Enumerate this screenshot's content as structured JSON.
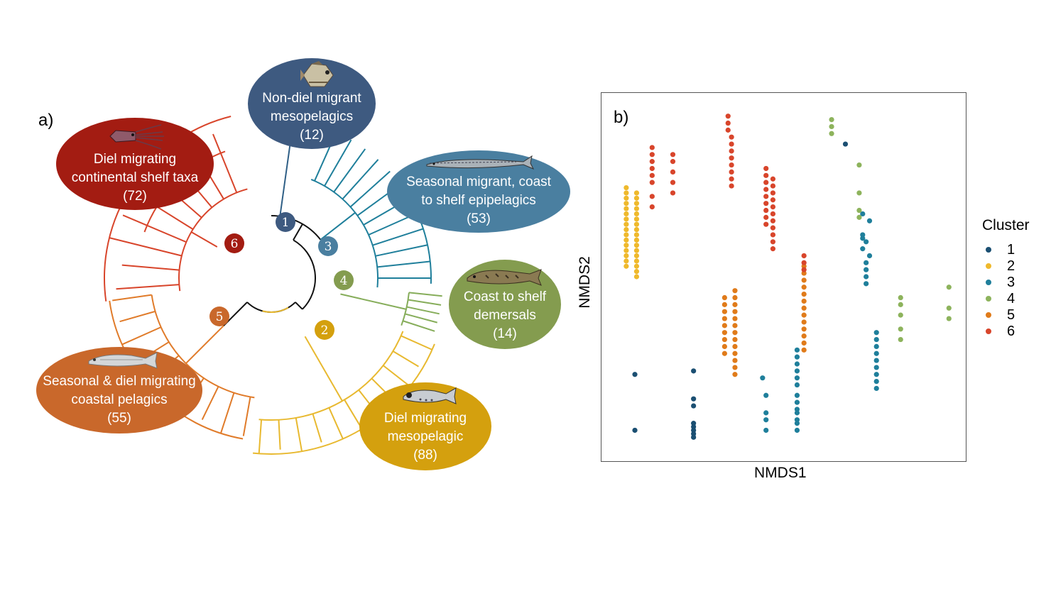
{
  "panel_a": {
    "label": "a)",
    "groups": [
      {
        "id": 1,
        "line1": "Non-diel migrant",
        "line2": "mesopelagics",
        "count": "(12)",
        "color": "#3e5a80",
        "icon": "hatchetfish-icon"
      },
      {
        "id": 3,
        "line1": "Seasonal migrant, coast",
        "line2": "to shelf epipelagics",
        "count": "(53)",
        "color": "#4a7fa0",
        "icon": "saury-icon"
      },
      {
        "id": 4,
        "line1": "Coast to shelf",
        "line2": "demersals",
        "count": "(14)",
        "color": "#849c4f",
        "icon": "cod-icon"
      },
      {
        "id": 2,
        "line1": "Diel migrating",
        "line2": "mesopelagic",
        "count": "(88)",
        "color": "#d4a00e",
        "icon": "lanternfish-icon"
      },
      {
        "id": 5,
        "line1": "Seasonal & diel migrating",
        "line2": "coastal pelagics",
        "count": "(55)",
        "color": "#c9682b",
        "icon": "anchovy-icon"
      },
      {
        "id": 6,
        "line1": "Diel migrating",
        "line2": "continental shelf taxa",
        "count": "(72)",
        "color": "#a31c12",
        "icon": "squid-icon"
      }
    ],
    "nodes": [
      {
        "num": "1",
        "color": "#3e5a80"
      },
      {
        "num": "2",
        "color": "#d4a00e"
      },
      {
        "num": "3",
        "color": "#4a7fa0"
      },
      {
        "num": "4",
        "color": "#849c4f"
      },
      {
        "num": "5",
        "color": "#c9682b"
      },
      {
        "num": "6",
        "color": "#a31c12"
      }
    ]
  },
  "panel_b": {
    "label": "b)",
    "xlabel": "NMDS1",
    "ylabel": "NMDS2",
    "legend_title": "Cluster",
    "legend": [
      {
        "label": "1",
        "color": "#1b4f72"
      },
      {
        "label": "2",
        "color": "#efb92c"
      },
      {
        "label": "3",
        "color": "#1f7f9b"
      },
      {
        "label": "4",
        "color": "#8db35c"
      },
      {
        "label": "5",
        "color": "#e07b1a"
      },
      {
        "label": "6",
        "color": "#d8452b"
      }
    ]
  },
  "chart_data": {
    "type": "scatter",
    "xlabel": "NMDS1",
    "ylabel": "NMDS2",
    "xlim": [
      0,
      1
    ],
    "ylim": [
      0,
      1
    ],
    "grid": false,
    "legend_title": "Cluster",
    "legend_position": "right",
    "series": [
      {
        "name": "1",
        "color": "#1b4f72",
        "points": [
          [
            0.68,
            0.88
          ],
          [
            0.07,
            0.22
          ],
          [
            0.07,
            0.06
          ],
          [
            0.24,
            0.23
          ],
          [
            0.24,
            0.15
          ],
          [
            0.24,
            0.13
          ],
          [
            0.24,
            0.08
          ],
          [
            0.24,
            0.07
          ],
          [
            0.24,
            0.06
          ],
          [
            0.24,
            0.05
          ],
          [
            0.24,
            0.04
          ]
        ]
      },
      {
        "name": "2",
        "color": "#efb92c",
        "series_note": "",
        "points": [
          [
            0.045,
            0.53
          ],
          [
            0.045,
            0.545
          ],
          [
            0.045,
            0.56
          ],
          [
            0.045,
            0.575
          ],
          [
            0.045,
            0.59
          ],
          [
            0.045,
            0.605
          ],
          [
            0.045,
            0.62
          ],
          [
            0.045,
            0.635
          ],
          [
            0.045,
            0.65
          ],
          [
            0.045,
            0.665
          ],
          [
            0.045,
            0.68
          ],
          [
            0.045,
            0.695
          ],
          [
            0.045,
            0.71
          ],
          [
            0.045,
            0.725
          ],
          [
            0.045,
            0.74
          ],
          [
            0.045,
            0.755
          ],
          [
            0.075,
            0.5
          ],
          [
            0.075,
            0.515
          ],
          [
            0.075,
            0.53
          ],
          [
            0.075,
            0.545
          ],
          [
            0.075,
            0.56
          ],
          [
            0.075,
            0.575
          ],
          [
            0.075,
            0.59
          ],
          [
            0.075,
            0.605
          ],
          [
            0.075,
            0.62
          ],
          [
            0.075,
            0.635
          ],
          [
            0.075,
            0.65
          ],
          [
            0.075,
            0.665
          ],
          [
            0.075,
            0.68
          ],
          [
            0.075,
            0.695
          ],
          [
            0.075,
            0.71
          ],
          [
            0.075,
            0.725
          ],
          [
            0.075,
            0.74
          ]
        ]
      },
      {
        "name": "3",
        "color": "#1f7f9b",
        "points": [
          [
            0.44,
            0.21
          ],
          [
            0.45,
            0.16
          ],
          [
            0.45,
            0.11
          ],
          [
            0.45,
            0.09
          ],
          [
            0.45,
            0.06
          ],
          [
            0.54,
            0.29
          ],
          [
            0.54,
            0.27
          ],
          [
            0.54,
            0.25
          ],
          [
            0.54,
            0.23
          ],
          [
            0.54,
            0.21
          ],
          [
            0.54,
            0.19
          ],
          [
            0.54,
            0.16
          ],
          [
            0.54,
            0.14
          ],
          [
            0.54,
            0.12
          ],
          [
            0.54,
            0.11
          ],
          [
            0.54,
            0.09
          ],
          [
            0.54,
            0.08
          ],
          [
            0.54,
            0.06
          ],
          [
            0.73,
            0.68
          ],
          [
            0.75,
            0.66
          ],
          [
            0.73,
            0.62
          ],
          [
            0.73,
            0.61
          ],
          [
            0.74,
            0.6
          ],
          [
            0.73,
            0.58
          ],
          [
            0.75,
            0.56
          ],
          [
            0.74,
            0.54
          ],
          [
            0.74,
            0.52
          ],
          [
            0.74,
            0.5
          ],
          [
            0.74,
            0.48
          ],
          [
            0.77,
            0.34
          ],
          [
            0.77,
            0.32
          ],
          [
            0.77,
            0.3
          ],
          [
            0.77,
            0.28
          ],
          [
            0.77,
            0.26
          ],
          [
            0.77,
            0.24
          ],
          [
            0.77,
            0.22
          ],
          [
            0.77,
            0.2
          ],
          [
            0.77,
            0.18
          ]
        ]
      },
      {
        "name": "4",
        "color": "#8db35c",
        "points": [
          [
            0.64,
            0.95
          ],
          [
            0.64,
            0.93
          ],
          [
            0.64,
            0.91
          ],
          [
            0.72,
            0.82
          ],
          [
            0.72,
            0.74
          ],
          [
            0.72,
            0.67
          ],
          [
            0.72,
            0.69
          ],
          [
            0.84,
            0.44
          ],
          [
            0.84,
            0.42
          ],
          [
            0.84,
            0.39
          ],
          [
            0.84,
            0.35
          ],
          [
            0.84,
            0.32
          ],
          [
            0.98,
            0.47
          ],
          [
            0.98,
            0.41
          ],
          [
            0.98,
            0.38
          ]
        ]
      },
      {
        "name": "5",
        "color": "#e07b1a",
        "points": [
          [
            0.33,
            0.44
          ],
          [
            0.33,
            0.42
          ],
          [
            0.33,
            0.4
          ],
          [
            0.33,
            0.38
          ],
          [
            0.33,
            0.36
          ],
          [
            0.33,
            0.34
          ],
          [
            0.33,
            0.32
          ],
          [
            0.33,
            0.3
          ],
          [
            0.33,
            0.28
          ],
          [
            0.36,
            0.46
          ],
          [
            0.36,
            0.44
          ],
          [
            0.36,
            0.42
          ],
          [
            0.36,
            0.4
          ],
          [
            0.36,
            0.38
          ],
          [
            0.36,
            0.36
          ],
          [
            0.36,
            0.34
          ],
          [
            0.36,
            0.32
          ],
          [
            0.36,
            0.3
          ],
          [
            0.36,
            0.28
          ],
          [
            0.36,
            0.26
          ],
          [
            0.36,
            0.24
          ],
          [
            0.36,
            0.22
          ],
          [
            0.56,
            0.53
          ],
          [
            0.56,
            0.51
          ],
          [
            0.56,
            0.49
          ],
          [
            0.56,
            0.47
          ],
          [
            0.56,
            0.45
          ],
          [
            0.56,
            0.43
          ],
          [
            0.56,
            0.41
          ],
          [
            0.56,
            0.39
          ],
          [
            0.56,
            0.37
          ],
          [
            0.56,
            0.35
          ],
          [
            0.56,
            0.33
          ],
          [
            0.56,
            0.31
          ],
          [
            0.56,
            0.29
          ]
        ]
      },
      {
        "name": "6",
        "color": "#d8452b",
        "points": [
          [
            0.12,
            0.87
          ],
          [
            0.12,
            0.85
          ],
          [
            0.12,
            0.83
          ],
          [
            0.12,
            0.81
          ],
          [
            0.12,
            0.79
          ],
          [
            0.12,
            0.77
          ],
          [
            0.12,
            0.73
          ],
          [
            0.12,
            0.7
          ],
          [
            0.18,
            0.85
          ],
          [
            0.18,
            0.83
          ],
          [
            0.18,
            0.8
          ],
          [
            0.18,
            0.77
          ],
          [
            0.18,
            0.74
          ],
          [
            0.34,
            0.96
          ],
          [
            0.34,
            0.94
          ],
          [
            0.34,
            0.92
          ],
          [
            0.35,
            0.9
          ],
          [
            0.35,
            0.88
          ],
          [
            0.35,
            0.86
          ],
          [
            0.35,
            0.84
          ],
          [
            0.35,
            0.82
          ],
          [
            0.35,
            0.8
          ],
          [
            0.35,
            0.78
          ],
          [
            0.35,
            0.76
          ],
          [
            0.45,
            0.81
          ],
          [
            0.45,
            0.79
          ],
          [
            0.45,
            0.77
          ],
          [
            0.45,
            0.75
          ],
          [
            0.45,
            0.73
          ],
          [
            0.45,
            0.71
          ],
          [
            0.45,
            0.69
          ],
          [
            0.45,
            0.67
          ],
          [
            0.45,
            0.65
          ],
          [
            0.47,
            0.78
          ],
          [
            0.47,
            0.76
          ],
          [
            0.47,
            0.74
          ],
          [
            0.47,
            0.72
          ],
          [
            0.47,
            0.7
          ],
          [
            0.47,
            0.68
          ],
          [
            0.47,
            0.66
          ],
          [
            0.47,
            0.64
          ],
          [
            0.47,
            0.62
          ],
          [
            0.47,
            0.6
          ],
          [
            0.47,
            0.58
          ],
          [
            0.56,
            0.56
          ],
          [
            0.56,
            0.54
          ],
          [
            0.56,
            0.52
          ]
        ]
      }
    ]
  }
}
